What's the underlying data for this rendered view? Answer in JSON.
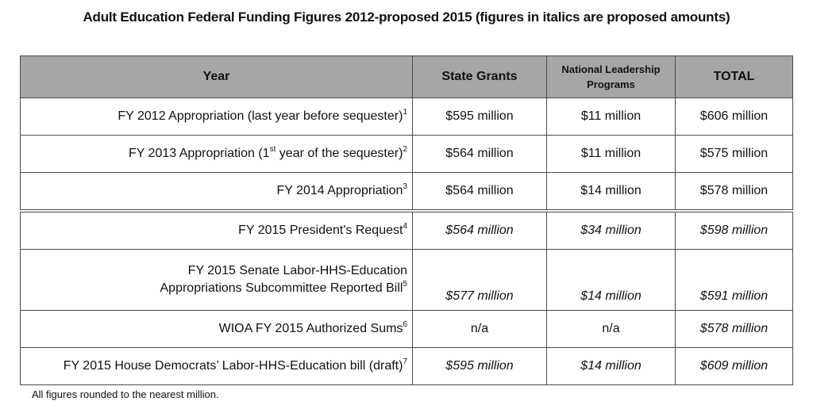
{
  "title": "Adult Education Federal Funding Figures 2012-proposed 2015 (figures in italics are proposed amounts)",
  "table": {
    "headers": [
      "Year",
      "State Grants",
      "National Leadership Programs",
      "TOTAL"
    ],
    "rows": [
      {
        "year": "FY 2012 Appropriation (last year before sequester)",
        "sup": "1",
        "state": "$595 million",
        "national": "$11 million",
        "total": "$606 million",
        "italic": false
      },
      {
        "year_pre": "FY 2013 Appropriation (1",
        "year_sup_mid": "st",
        "year_post": " year of the sequester)",
        "sup": "2",
        "state": "$564 million",
        "national": "$11 million",
        "total": "$575 million",
        "italic": false
      },
      {
        "year": "FY 2014 Appropriation",
        "sup": "3",
        "state": "$564 million",
        "national": "$14 million",
        "total": "$578 million",
        "italic": false
      },
      {
        "year": "FY 2015 President's Request",
        "sup": "4",
        "state": "$564 million",
        "national": "$34 million",
        "total": "$598 million",
        "italic": true
      },
      {
        "year_line1": "FY 2015 Senate Labor-HHS-Education",
        "year_line2": "Appropriations Subcommittee Reported Bill",
        "sup": "5",
        "state": "$577 million",
        "national": "$14 million",
        "total": "$591 million",
        "italic": true
      },
      {
        "year": "WIOA FY 2015 Authorized Sums",
        "sup": "6",
        "state": "n/a",
        "national": "n/a",
        "total": "$578 million",
        "italic_total_only": true
      },
      {
        "year": "FY 2015 House Democrats’ Labor-HHS-Education bill (draft)",
        "sup": "7",
        "state": "$595 million",
        "national": "$14 million",
        "total": "$609 million",
        "italic": true
      }
    ]
  },
  "footnote": "All figures rounded to the nearest million.",
  "colors": {
    "header_bg": "#a6a6a6",
    "border": "#4a4a4a"
  }
}
